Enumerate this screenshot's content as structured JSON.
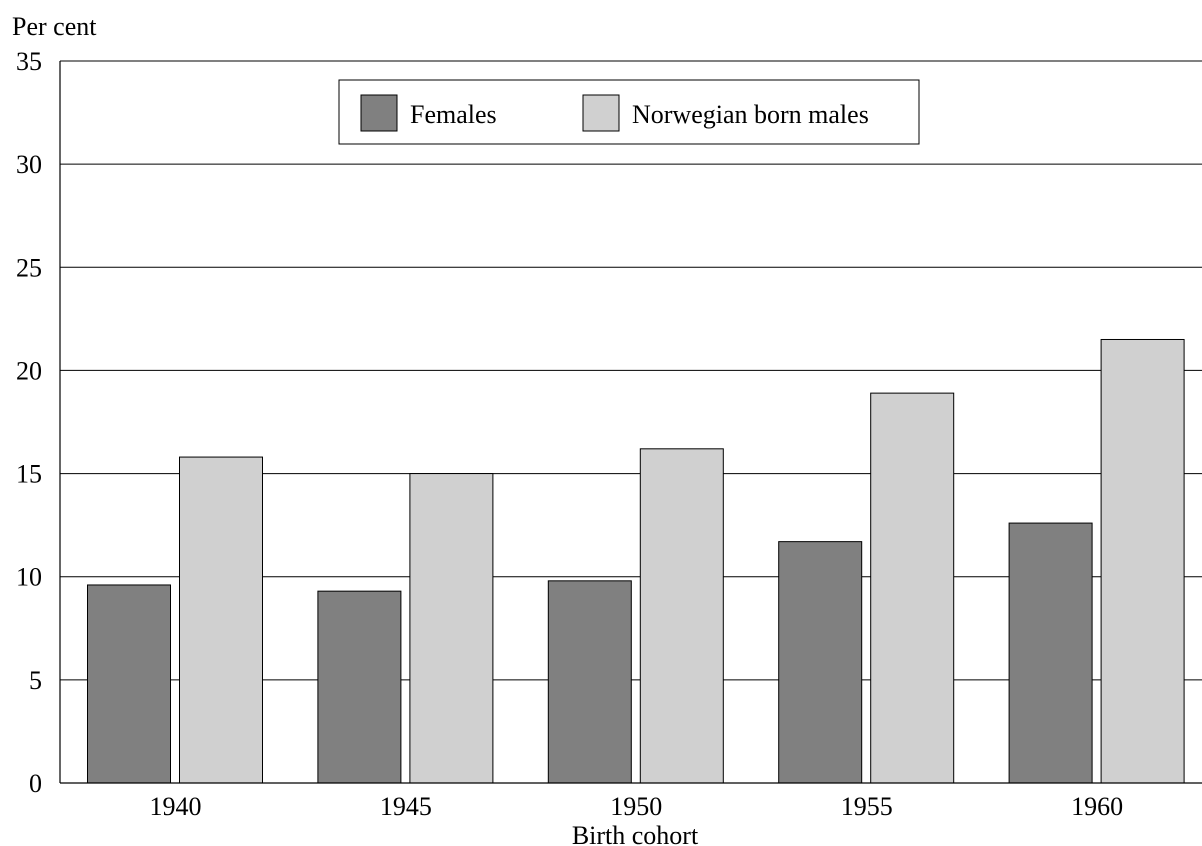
{
  "chart_data": {
    "type": "bar",
    "ylabel": "Per cent",
    "xlabel": "Birth cohort",
    "categories": [
      "1940",
      "1945",
      "1950",
      "1955",
      "1960"
    ],
    "ylim": [
      0,
      35
    ],
    "yticks": [
      "0",
      "5",
      "10",
      "15",
      "20",
      "25",
      "30",
      "35"
    ],
    "grid": true,
    "legend": "top-center",
    "series": [
      {
        "name": "Females",
        "values": [
          9.6,
          9.3,
          9.8,
          11.7,
          12.6
        ],
        "color": "#808080"
      },
      {
        "name": "Norwegian born males",
        "values": [
          15.8,
          15.0,
          16.2,
          18.9,
          21.5
        ],
        "color": "#d0d0d0"
      }
    ]
  }
}
